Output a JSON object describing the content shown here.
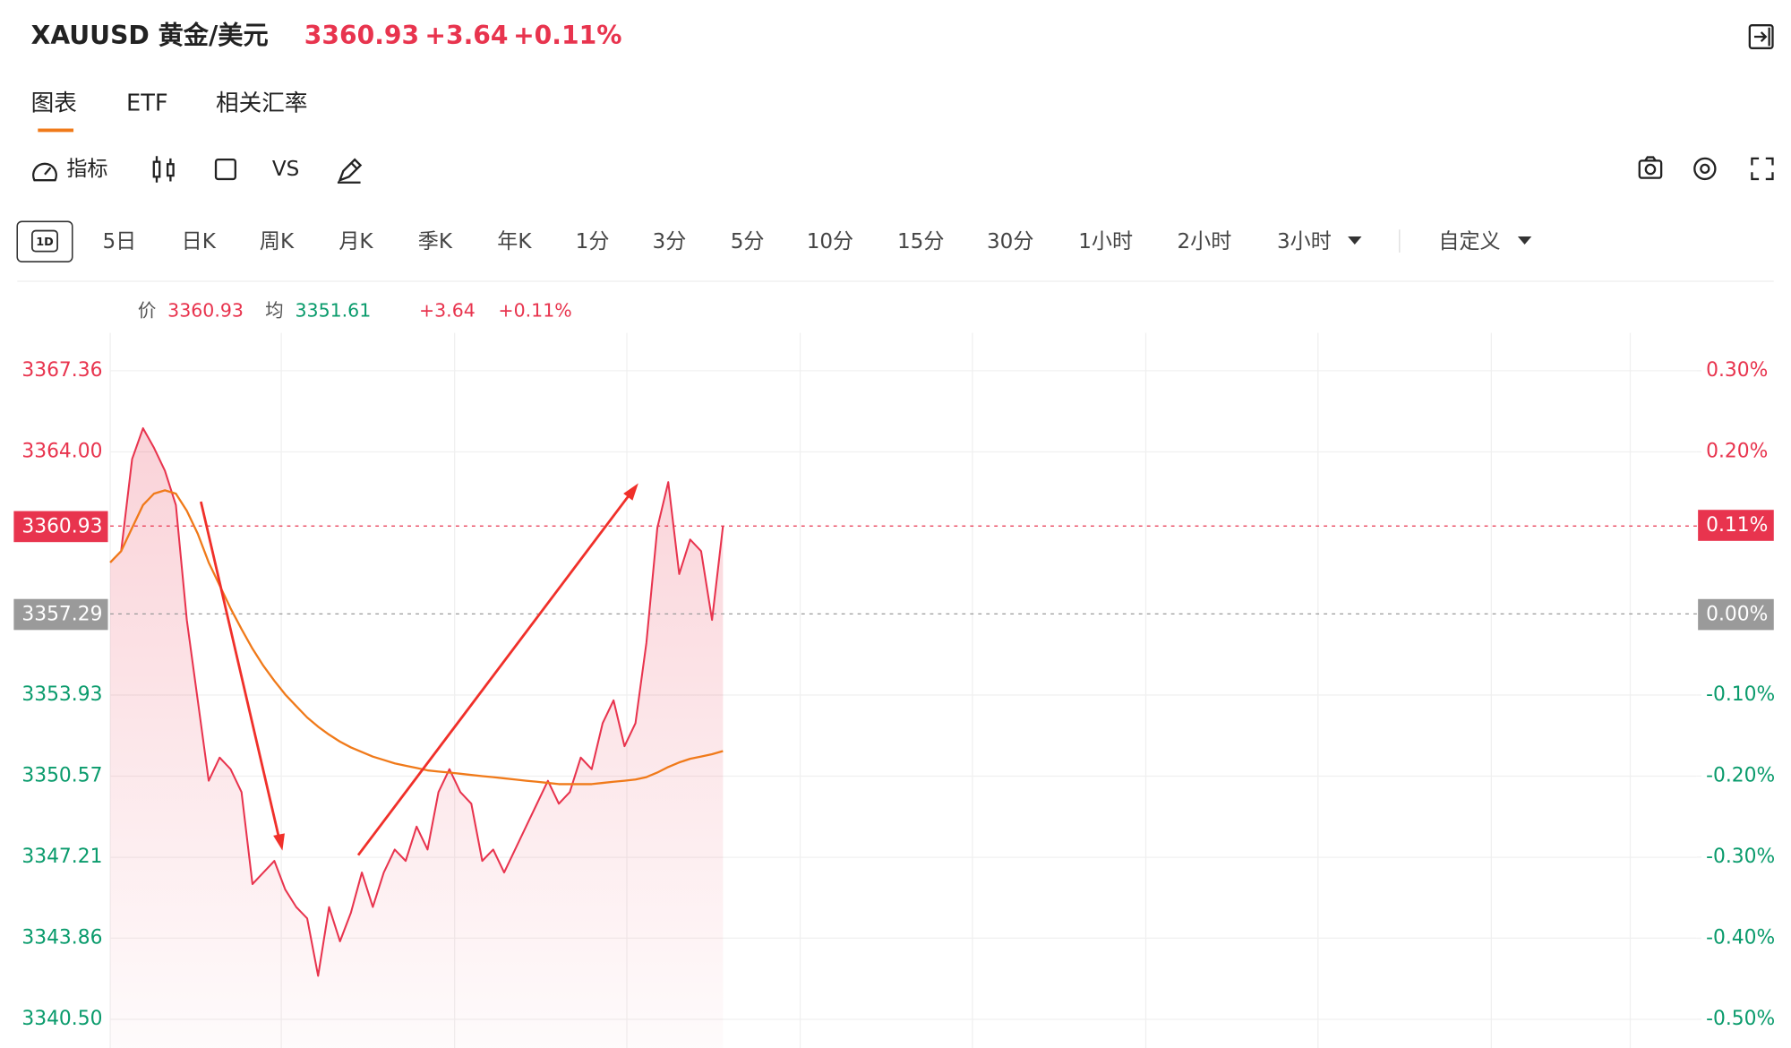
{
  "header": {
    "symbol": "XAUUSD 黄金/美元",
    "price": "3360.93",
    "change": "+3.64",
    "change_pct": "+0.11%"
  },
  "tabs": [
    "图表",
    "ETF",
    "相关汇率"
  ],
  "toolbar": {
    "indicator": "指标",
    "compare": "VS"
  },
  "periods": [
    "1D",
    "5日",
    "日K",
    "周K",
    "月K",
    "季K",
    "年K",
    "1分",
    "3分",
    "5分",
    "10分",
    "15分",
    "30分",
    "1小时",
    "2小时",
    "3小时",
    "自定义"
  ],
  "chart_data": {
    "type": "line",
    "series": [
      {
        "name": "价",
        "color": "#e8344e",
        "values": [
          3359.42,
          3359.89,
          3363.7,
          3364.98,
          3364.17,
          3363.22,
          3361.8,
          3357.04,
          3353.71,
          3350.38,
          3351.34,
          3350.86,
          3349.91,
          3346.1,
          3346.58,
          3347.06,
          3345.87,
          3345.15,
          3344.68,
          3342.3,
          3345.15,
          3343.73,
          3344.92,
          3346.58,
          3345.15,
          3346.58,
          3347.53,
          3347.06,
          3348.48,
          3347.53,
          3349.91,
          3350.86,
          3349.91,
          3349.43,
          3347.06,
          3347.53,
          3346.58,
          3347.53,
          3348.48,
          3349.43,
          3350.38,
          3349.43,
          3349.91,
          3351.34,
          3350.86,
          3352.76,
          3353.71,
          3351.81,
          3352.76,
          3356.09,
          3360.85,
          3362.75,
          3358.94,
          3360.37,
          3359.89,
          3357.04,
          3360.93,
          null,
          null,
          null,
          null,
          null,
          null,
          null,
          null,
          null,
          null,
          null,
          null,
          null,
          null,
          null,
          null,
          null,
          null,
          null,
          null,
          null,
          null,
          null,
          null,
          null,
          null,
          null,
          null,
          null,
          null,
          null,
          null,
          null,
          null,
          null,
          null,
          null,
          null,
          null,
          null,
          null,
          null,
          null,
          null,
          null,
          null,
          null,
          null,
          null,
          null,
          null,
          null,
          null,
          null,
          null,
          null,
          null,
          null,
          null,
          null,
          null,
          null,
          null,
          null,
          null,
          null,
          null,
          null,
          null,
          null,
          null,
          null,
          null,
          null,
          null,
          null,
          null,
          null,
          null,
          null,
          null,
          null,
          null,
          null,
          null,
          null,
          null,
          null
        ]
      },
      {
        "name": "均",
        "color": "#f07a1a",
        "values": [
          3359.42,
          3359.89,
          3360.85,
          3361.8,
          3362.27,
          3362.41,
          3362.27,
          3361.56,
          3360.61,
          3359.42,
          3358.47,
          3357.52,
          3356.66,
          3355.85,
          3355.14,
          3354.52,
          3353.95,
          3353.47,
          3353.0,
          3352.62,
          3352.29,
          3352.0,
          3351.76,
          3351.57,
          3351.38,
          3351.24,
          3351.1,
          3351.0,
          3350.91,
          3350.81,
          3350.76,
          3350.72,
          3350.67,
          3350.62,
          3350.57,
          3350.53,
          3350.48,
          3350.43,
          3350.38,
          3350.34,
          3350.29,
          3350.24,
          3350.24,
          3350.24,
          3350.24,
          3350.29,
          3350.34,
          3350.38,
          3350.43,
          3350.53,
          3350.72,
          3350.95,
          3351.14,
          3351.29,
          3351.38,
          3351.48,
          3351.61,
          null,
          null,
          null,
          null,
          null,
          null,
          null,
          null,
          null,
          null,
          null,
          null,
          null,
          null,
          null,
          null,
          null,
          null,
          null,
          null,
          null,
          null,
          null,
          null,
          null,
          null,
          null,
          null,
          null,
          null,
          null,
          null,
          null,
          null,
          null,
          null,
          null,
          null,
          null,
          null,
          null,
          null,
          null,
          null,
          null,
          null,
          null,
          null,
          null,
          null,
          null,
          null,
          null,
          null,
          null,
          null,
          null,
          null,
          null,
          null,
          null,
          null,
          null,
          null,
          null,
          null,
          null,
          null,
          null,
          null,
          null,
          null,
          null,
          null,
          null,
          null,
          null,
          null,
          null,
          null,
          null,
          null,
          null,
          null,
          null,
          null,
          null,
          null
        ]
      }
    ],
    "ylim": [
      3340.5,
      3367.36
    ],
    "yticks": [
      3367.36,
      {
        "value": 3364,
        "label": "3364.00"
      },
      3353.93,
      3350.57,
      3347.21,
      3343.86,
      {
        "value": 3340.5,
        "label": "3340.50"
      }
    ],
    "y2lim": [
      -0.5,
      0.3
    ],
    "y2ticks": [
      {
        "value": 0.3,
        "label": "0.30%"
      },
      {
        "value": 0.2,
        "label": "0.20%"
      },
      {
        "value": -0.1,
        "label": "-0.10%"
      },
      {
        "value": -0.2,
        "label": "-0.20%"
      },
      {
        "value": -0.3,
        "label": "-0.30%"
      },
      {
        "value": -0.4,
        "label": "-0.40%"
      },
      {
        "value": -0.5,
        "label": "-0.50%"
      }
    ],
    "reference_lines": [
      {
        "value": 3357.29,
        "y2": {
          "value": 0,
          "label": "0.00%"
        },
        "color": "#9a9a9a"
      },
      {
        "value": 3360.93,
        "y2": {
          "value": 0.11,
          "label": "0.11%"
        },
        "color": "#e8344e"
      }
    ],
    "up_color": "#e8344e",
    "down_color": "#0a9b6c",
    "grid": true
  }
}
